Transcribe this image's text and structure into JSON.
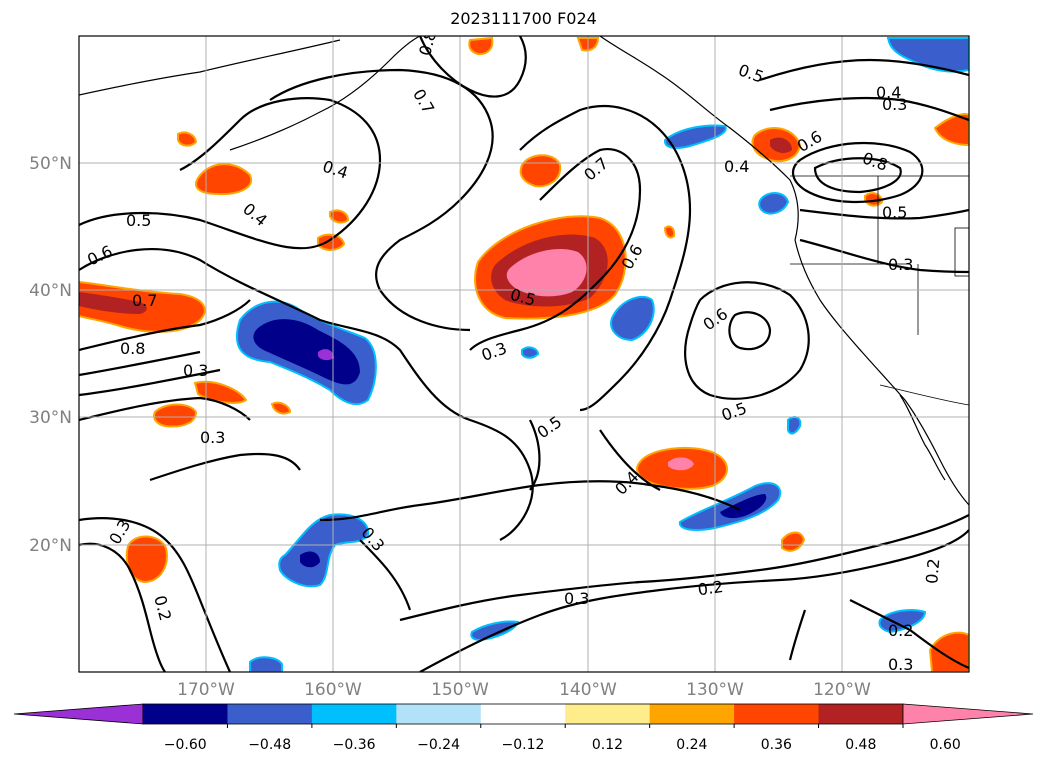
{
  "title": "2023111700 F024",
  "map": {
    "projection": "PlateCarree",
    "lon_range": [
      -180,
      -110
    ],
    "lat_range": [
      10,
      60
    ],
    "lat_ticks": [
      {
        "value": 50,
        "label": "50°N"
      },
      {
        "value": 40,
        "label": "40°N"
      },
      {
        "value": 30,
        "label": "30°N"
      },
      {
        "value": 20,
        "label": "20°N"
      }
    ],
    "lon_ticks": [
      {
        "value": -170,
        "label": "170°W"
      },
      {
        "value": -160,
        "label": "160°W"
      },
      {
        "value": -150,
        "label": "150°W"
      },
      {
        "value": -140,
        "label": "140°W"
      },
      {
        "value": -130,
        "label": "130°W"
      },
      {
        "value": -120,
        "label": "120°W"
      }
    ],
    "grid": true,
    "contour_labels": [
      "0.2",
      "0.3",
      "0.4",
      "0.5",
      "0.6",
      "0.7",
      "0.8"
    ]
  },
  "colorbar": {
    "orientation": "horizontal",
    "extend": "both",
    "levels": [
      -0.6,
      -0.48,
      -0.36,
      -0.24,
      -0.12,
      0.12,
      0.24,
      0.36,
      0.48,
      0.6
    ],
    "tick_labels": [
      "−0.60",
      "−0.48",
      "−0.36",
      "−0.24",
      "−0.12",
      "0.12",
      "0.24",
      "0.36",
      "0.48",
      "0.60"
    ],
    "colors": [
      "#9b30d6",
      "#00008b",
      "#3a5fcd",
      "#00bfff",
      "#b2e2f8",
      "#ffffff",
      "#ffec8b",
      "#ffa500",
      "#ff4500",
      "#b22222",
      "#ff82ab"
    ]
  }
}
